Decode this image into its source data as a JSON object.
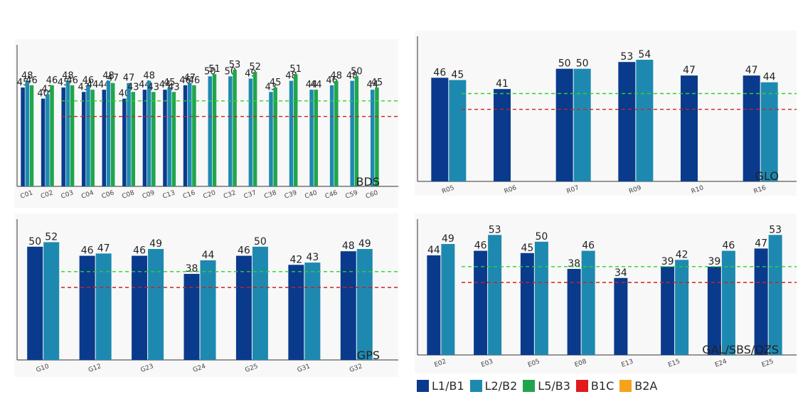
{
  "colors": {
    "L1/B1": "#0a3a8c",
    "L2/B2": "#1e89b0",
    "L5/B3": "#20a54d",
    "B1C": "#e21a1a",
    "B2A": "#f6a21a",
    "green_ref": "#2ed12e",
    "red_ref": "#d02020",
    "axis": "#333333",
    "text": "#222222"
  },
  "legend": {
    "items": [
      {
        "label": "L1/B1",
        "color": "#0a3a8c"
      },
      {
        "label": "L2/B2",
        "color": "#1e89b0"
      },
      {
        "label": "L5/B3",
        "color": "#20a54d"
      },
      {
        "label": "B1C",
        "color": "#e21a1a"
      },
      {
        "label": "B2A",
        "color": "#f6a21a"
      }
    ]
  },
  "chart_data": [
    {
      "type": "bar",
      "id": "bds",
      "title": "BDS",
      "ylim": [
        0,
        60
      ],
      "reference_lines": [
        39,
        32
      ],
      "series_names": [
        "L1/B1",
        "L2/B2",
        "L5/B3"
      ],
      "categories": [
        "C01",
        "C02",
        "C03",
        "C04",
        "C06",
        "C08",
        "C09",
        "C13",
        "C16",
        "C20",
        "C32",
        "C37",
        "C38",
        "C39",
        "C40",
        "C46",
        "C59",
        "C60"
      ],
      "values": [
        [
          45,
          48,
          46
        ],
        [
          40,
          42,
          46
        ],
        [
          45,
          48,
          46
        ],
        [
          43,
          46,
          44
        ],
        [
          44,
          48,
          47
        ],
        [
          40,
          47,
          43
        ],
        [
          44,
          48,
          43
        ],
        [
          44,
          45,
          43
        ],
        [
          46,
          47,
          46
        ],
        [
          null,
          50,
          51
        ],
        [
          null,
          50,
          53
        ],
        [
          null,
          49,
          52
        ],
        [
          null,
          43,
          45
        ],
        [
          null,
          48,
          51
        ],
        [
          null,
          44,
          44
        ],
        [
          null,
          46,
          48
        ],
        [
          null,
          48,
          50
        ],
        [
          null,
          44,
          45
        ]
      ]
    },
    {
      "type": "bar",
      "id": "glo",
      "title": "GLO",
      "ylim": [
        0,
        60
      ],
      "reference_lines": [
        39,
        32
      ],
      "series_names": [
        "L1/B1",
        "L2/B2"
      ],
      "categories": [
        "R05",
        "R06",
        "R07",
        "R09",
        "R10",
        "R16"
      ],
      "values": [
        [
          46,
          45
        ],
        [
          41,
          null
        ],
        [
          50,
          50
        ],
        [
          53,
          54
        ],
        [
          47,
          null
        ],
        [
          47,
          44
        ]
      ]
    },
    {
      "type": "bar",
      "id": "gps",
      "title": "GPS",
      "ylim": [
        0,
        60
      ],
      "reference_lines": [
        39,
        32
      ],
      "series_names": [
        "L1/B1",
        "L2/B2"
      ],
      "categories": [
        "G10",
        "G12",
        "G23",
        "G24",
        "G25",
        "G31",
        "G32"
      ],
      "values": [
        [
          50,
          52
        ],
        [
          46,
          47
        ],
        [
          46,
          49
        ],
        [
          38,
          44
        ],
        [
          46,
          50
        ],
        [
          42,
          43
        ],
        [
          48,
          49
        ]
      ]
    },
    {
      "type": "bar",
      "id": "gal",
      "title": "GAL/SBS/QZS",
      "ylim": [
        0,
        60
      ],
      "reference_lines": [
        39,
        32
      ],
      "series_names": [
        "L1/B1",
        "L2/B2"
      ],
      "categories": [
        "E02",
        "E03",
        "E05",
        "E08",
        "E13",
        "E15",
        "E24",
        "E25"
      ],
      "values": [
        [
          44,
          49
        ],
        [
          46,
          53
        ],
        [
          45,
          50
        ],
        [
          38,
          46
        ],
        [
          34,
          null
        ],
        [
          39,
          42
        ],
        [
          39,
          46
        ],
        [
          47,
          53
        ]
      ]
    }
  ]
}
